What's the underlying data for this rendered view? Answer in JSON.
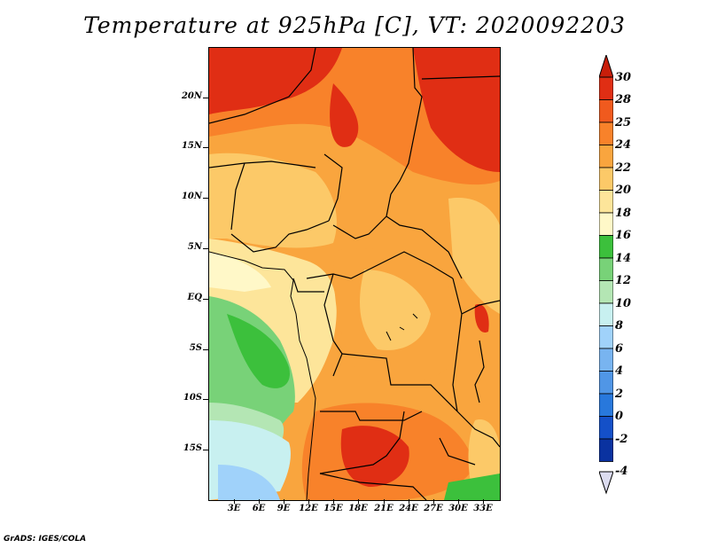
{
  "title": "Temperature at 925hPa [C], VT: 2020092203",
  "footer": "GrADS: IGES/COLA",
  "lat_labels": [
    "20N",
    "15N",
    "10N",
    "5N",
    "EQ",
    "5S",
    "10S",
    "15S"
  ],
  "lon_labels": [
    "3E",
    "6E",
    "9E",
    "12E",
    "15E",
    "18E",
    "21E",
    "24E",
    "27E",
    "30E",
    "33E"
  ],
  "colorbar": {
    "labels": [
      "30",
      "28",
      "25",
      "24",
      "22",
      "20",
      "18",
      "16",
      "14",
      "12",
      "10",
      "8",
      "6",
      "4",
      "2",
      "0",
      "-2",
      "-4"
    ],
    "colors": [
      "#e02e14",
      "#f05a1e",
      "#f8822a",
      "#f9a53e",
      "#fcc968",
      "#fde59a",
      "#fff8c8",
      "#3cc03c",
      "#78d278",
      "#b4e6b4",
      "#c8f0f0",
      "#a0d2fa",
      "#78b4f0",
      "#5096e6",
      "#2878dc",
      "#1450c8",
      "#0a32a0",
      "#0a1464"
    ],
    "over_color": "#c81e0a",
    "under_color": "#dcdcf0"
  }
}
